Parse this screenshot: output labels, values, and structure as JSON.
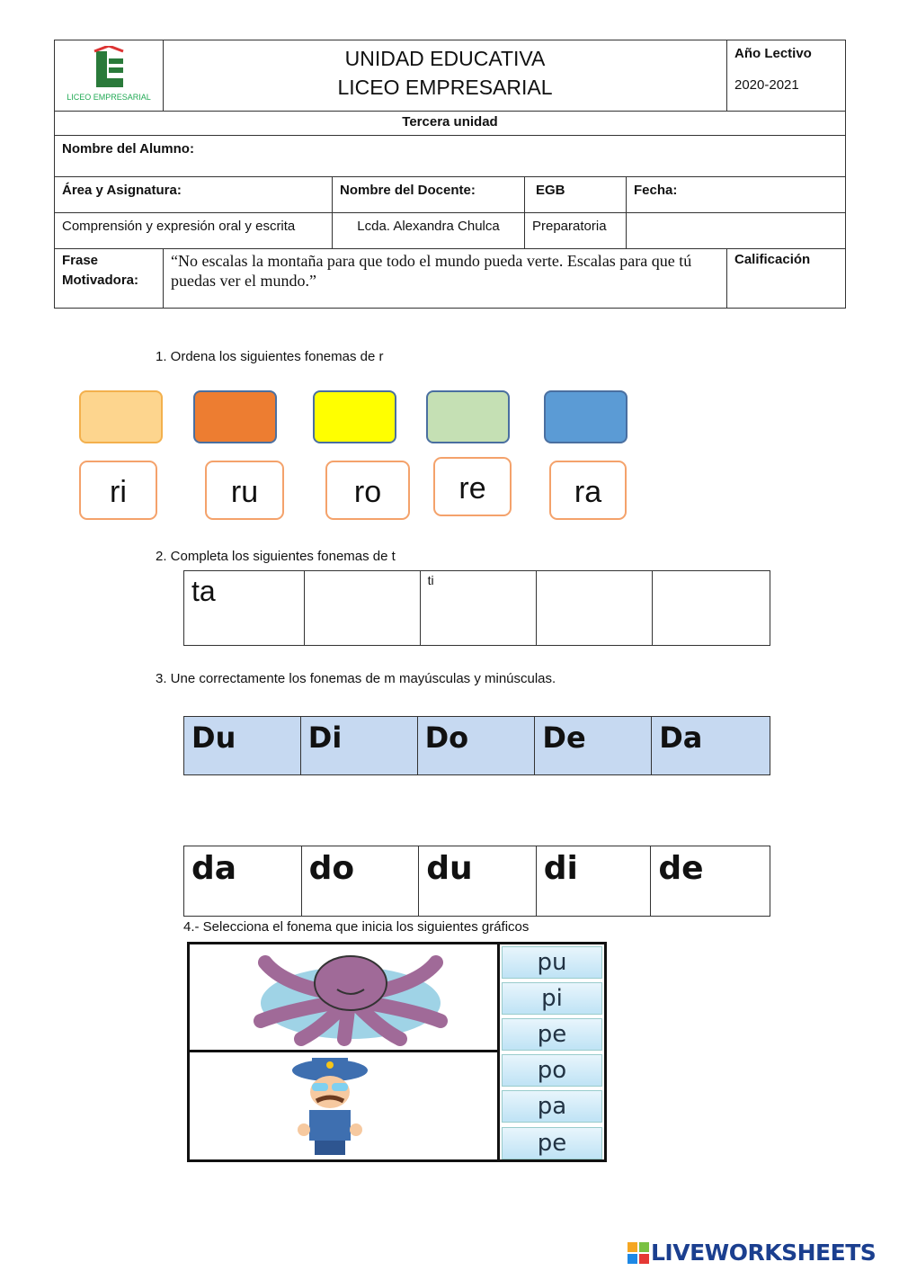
{
  "header": {
    "logo_text": "LICEO EMPRESARIAL",
    "title_line1": "UNIDAD EDUCATIVA",
    "title_line2": "LICEO EMPRESARIAL",
    "year_label": "Año Lectivo",
    "year_value": "2020-2021",
    "unit": "Tercera unidad",
    "student_label": "Nombre del Alumno:",
    "area_label": "Área y Asignatura:",
    "teacher_label": "Nombre del Docente:",
    "egb_label": "EGB",
    "date_label": "Fecha:",
    "area_value": "Comprensión y expresión oral y escrita",
    "teacher_value": "Lcda. Alexandra Chulca",
    "egb_value": "Preparatoria",
    "phrase_label_1": "Frase",
    "phrase_label_2": "Motivadora:",
    "phrase": "“No escalas la montaña para que todo el mundo pueda verte. Escalas para que tú puedas ver el mundo.”",
    "grade_label": "Calificación"
  },
  "q1": {
    "prompt": "1.   Ordena los siguientes fonemas de  r",
    "colors": [
      "#fdd58e",
      "#ed7d31",
      "#ffff00",
      "#c5e0b4",
      "#5b9bd5"
    ],
    "syllables": [
      "ri",
      "ru",
      "ro",
      "re",
      "ra"
    ]
  },
  "q2": {
    "prompt": "2.   Completa los siguientes fonemas de t",
    "cells": [
      "ta",
      "",
      "ti",
      "",
      ""
    ]
  },
  "q3": {
    "prompt": "3.    Une  correctamente  los fonemas de m mayúsculas y minúsculas.",
    "upper": [
      "Du",
      "Di",
      "Do",
      "De",
      "Da"
    ],
    "lower": [
      "da",
      "do",
      "du",
      "di",
      "de"
    ],
    "upper_fill": "#c6d9f1"
  },
  "q4": {
    "prompt": "4.- Selecciona el fonema que inicia los siguientes gráficos",
    "images": [
      "octopus",
      "police-officer"
    ],
    "options_1": [
      "pu",
      "pi",
      "pe"
    ],
    "options_2": [
      "po",
      "pa",
      "pe"
    ]
  },
  "footer": {
    "brand": "LIVEWORKSHEETS"
  }
}
